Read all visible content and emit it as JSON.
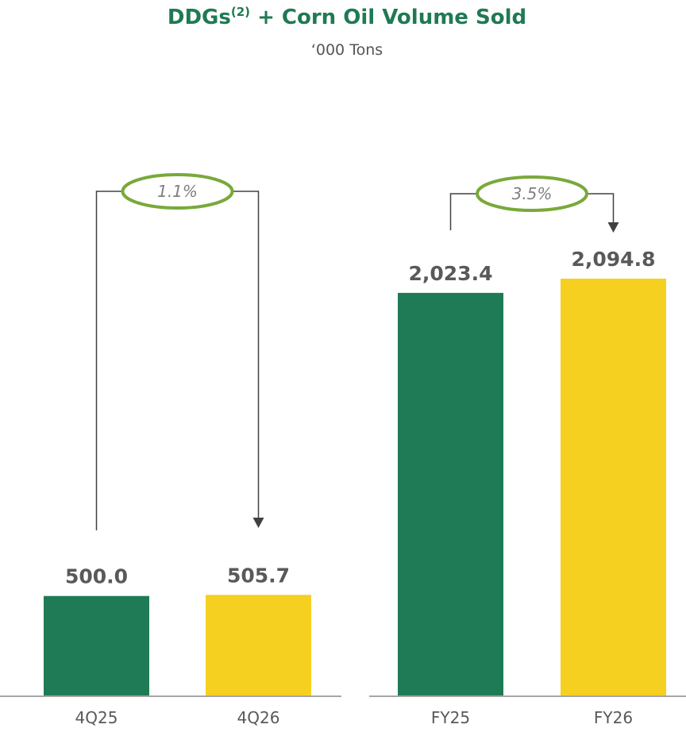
{
  "title": {
    "main": "DDGs",
    "superscript": "(2)",
    "rest": " + Corn Oil Volume Sold"
  },
  "subtitle": "‘000 Tons",
  "colors": {
    "prior": "#1e7b55",
    "current": "#f5d020",
    "bubble_border": "#79a93a",
    "connector": "#404040",
    "axis": "#a6a6a6"
  },
  "chart_data": [
    {
      "type": "bar",
      "categories": [
        "4Q25",
        "4Q26"
      ],
      "values": [
        500.0,
        505.7
      ],
      "value_labels": [
        "500.0",
        "505.7"
      ],
      "growth_label": "1.1%",
      "ylim": [
        0,
        2200
      ]
    },
    {
      "type": "bar",
      "categories": [
        "FY25",
        "FY26"
      ],
      "values": [
        2023.4,
        2094.8
      ],
      "value_labels": [
        "2,023.4",
        "2,094.8"
      ],
      "growth_label": "3.5%",
      "ylim": [
        0,
        2200
      ]
    }
  ]
}
